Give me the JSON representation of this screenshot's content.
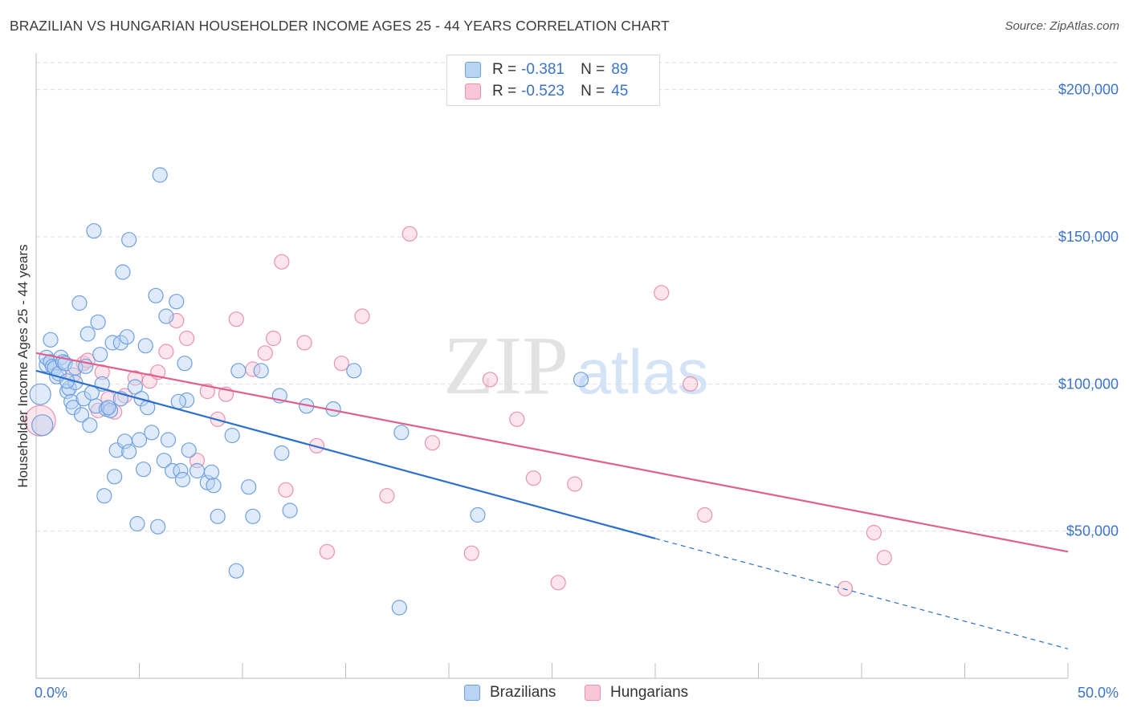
{
  "title": "BRAZILIAN VS HUNGARIAN HOUSEHOLDER INCOME AGES 25 - 44 YEARS CORRELATION CHART",
  "source": "Source: ZipAtlas.com",
  "watermark": {
    "zip": "ZIP",
    "atlas": "atlas"
  },
  "colors": {
    "brazilians": "#6fa0e0",
    "brazilians_fill": "#b9d3f3",
    "brazilians_line": "#2b6fcf",
    "hungarians": "#ea92b0",
    "hungarians_fill": "#f8c6d6",
    "hungarians_line": "#e0608c",
    "axis_text": "#3b74c7",
    "grid": "#dedede"
  },
  "legend_top": [
    {
      "r_label": "R =",
      "r_value": "-0.381",
      "n_label": "N =",
      "n_value": "89"
    },
    {
      "r_label": "R =",
      "r_value": "-0.523",
      "n_label": "N =",
      "n_value": "45"
    }
  ],
  "legend_bottom": [
    "Brazilians",
    "Hungarians"
  ],
  "chart_data": {
    "type": "scatter",
    "title": "BRAZILIAN VS HUNGARIAN HOUSEHOLDER INCOME AGES 25 - 44 YEARS CORRELATION CHART",
    "xlabel": "",
    "ylabel": "Householder Income Ages 25 - 44 years",
    "xlim": [
      0,
      50
    ],
    "ylim": [
      0,
      210000
    ],
    "x_tick_labels": [
      "0.0%",
      "50.0%"
    ],
    "y_ticks": [
      50000,
      100000,
      150000,
      200000
    ],
    "y_tick_labels": [
      "$50,000",
      "$100,000",
      "$150,000",
      "$200,000"
    ],
    "grid": true,
    "legend_position": "top-center",
    "series": [
      {
        "name": "Brazilians",
        "r": -0.381,
        "n": 89,
        "trend": {
          "x0": 0,
          "y0": 104500,
          "x1": 30,
          "y1": 47500,
          "dashed_to_x": 50,
          "dashed_to_y": 10000
        },
        "points": [
          [
            0.2,
            96500
          ],
          [
            0.3,
            86000
          ],
          [
            0.5,
            106500
          ],
          [
            0.5,
            109000
          ],
          [
            0.7,
            107500
          ],
          [
            0.7,
            115000
          ],
          [
            0.8,
            106000
          ],
          [
            0.9,
            105500
          ],
          [
            1.0,
            102500
          ],
          [
            1.1,
            103500
          ],
          [
            1.2,
            109000
          ],
          [
            1.3,
            107500
          ],
          [
            1.4,
            107000
          ],
          [
            1.5,
            97500
          ],
          [
            1.6,
            98500
          ],
          [
            1.7,
            94000
          ],
          [
            1.8,
            92000
          ],
          [
            1.9,
            100500
          ],
          [
            1.9,
            105500
          ],
          [
            2.1,
            127500
          ],
          [
            2.2,
            89500
          ],
          [
            2.3,
            95000
          ],
          [
            2.4,
            106000
          ],
          [
            2.5,
            117000
          ],
          [
            2.6,
            86000
          ],
          [
            2.7,
            97000
          ],
          [
            2.8,
            152000
          ],
          [
            2.9,
            92500
          ],
          [
            3.0,
            121000
          ],
          [
            3.1,
            110000
          ],
          [
            3.2,
            100000
          ],
          [
            3.3,
            62000
          ],
          [
            3.4,
            91500
          ],
          [
            3.6,
            91000
          ],
          [
            3.7,
            114000
          ],
          [
            3.8,
            68500
          ],
          [
            3.9,
            77500
          ],
          [
            4.1,
            95000
          ],
          [
            4.1,
            114000
          ],
          [
            4.2,
            138000
          ],
          [
            4.3,
            80500
          ],
          [
            4.4,
            116000
          ],
          [
            4.5,
            77000
          ],
          [
            4.5,
            149000
          ],
          [
            4.8,
            99000
          ],
          [
            4.9,
            52500
          ],
          [
            5.0,
            81000
          ],
          [
            5.1,
            95000
          ],
          [
            5.2,
            71000
          ],
          [
            5.3,
            113000
          ],
          [
            5.4,
            92000
          ],
          [
            5.6,
            83500
          ],
          [
            5.8,
            130000
          ],
          [
            5.9,
            51500
          ],
          [
            6.0,
            171000
          ],
          [
            6.2,
            74000
          ],
          [
            6.3,
            123000
          ],
          [
            6.4,
            81000
          ],
          [
            6.6,
            70500
          ],
          [
            6.8,
            128000
          ],
          [
            7.0,
            70500
          ],
          [
            7.1,
            67500
          ],
          [
            7.2,
            107000
          ],
          [
            7.3,
            94500
          ],
          [
            7.4,
            77500
          ],
          [
            7.8,
            70500
          ],
          [
            8.3,
            66500
          ],
          [
            8.5,
            70000
          ],
          [
            8.6,
            65500
          ],
          [
            8.8,
            55000
          ],
          [
            9.5,
            82500
          ],
          [
            9.7,
            36500
          ],
          [
            9.8,
            104500
          ],
          [
            10.3,
            65000
          ],
          [
            10.5,
            55000
          ],
          [
            10.9,
            104500
          ],
          [
            11.8,
            96000
          ],
          [
            11.9,
            76500
          ],
          [
            12.3,
            57000
          ],
          [
            13.1,
            92500
          ],
          [
            14.4,
            91500
          ],
          [
            15.4,
            104500
          ],
          [
            17.6,
            24000
          ],
          [
            17.7,
            83500
          ],
          [
            21.4,
            55500
          ],
          [
            26.4,
            101500
          ],
          [
            1.5,
            101000
          ],
          [
            3.5,
            92000
          ],
          [
            6.9,
            94000
          ]
        ]
      },
      {
        "name": "Hungarians",
        "r": -0.523,
        "n": 45,
        "trend": {
          "x0": 0,
          "y0": 110500,
          "x1": 50,
          "y1": 43000
        },
        "points": [
          [
            0.2,
            87500
          ],
          [
            1.8,
            103000
          ],
          [
            2.3,
            107000
          ],
          [
            2.5,
            108000
          ],
          [
            3.0,
            91000
          ],
          [
            3.2,
            104000
          ],
          [
            3.5,
            95000
          ],
          [
            3.8,
            90500
          ],
          [
            4.3,
            96000
          ],
          [
            4.8,
            102000
          ],
          [
            5.5,
            101000
          ],
          [
            5.9,
            104000
          ],
          [
            6.3,
            111000
          ],
          [
            6.8,
            121500
          ],
          [
            7.3,
            115500
          ],
          [
            7.8,
            74000
          ],
          [
            8.3,
            97500
          ],
          [
            8.8,
            88000
          ],
          [
            9.2,
            96500
          ],
          [
            9.7,
            122000
          ],
          [
            10.5,
            105000
          ],
          [
            11.1,
            110500
          ],
          [
            11.5,
            115500
          ],
          [
            11.9,
            141500
          ],
          [
            12.1,
            64000
          ],
          [
            13.0,
            114000
          ],
          [
            13.6,
            79000
          ],
          [
            14.1,
            43000
          ],
          [
            14.8,
            107000
          ],
          [
            15.8,
            123000
          ],
          [
            17.0,
            62000
          ],
          [
            18.1,
            151000
          ],
          [
            19.2,
            80000
          ],
          [
            21.1,
            42500
          ],
          [
            22.0,
            101500
          ],
          [
            23.3,
            88000
          ],
          [
            24.1,
            68000
          ],
          [
            25.3,
            32500
          ],
          [
            26.1,
            66000
          ],
          [
            30.3,
            131000
          ],
          [
            31.7,
            100000
          ],
          [
            32.4,
            55500
          ],
          [
            39.2,
            30500
          ],
          [
            40.6,
            49500
          ],
          [
            41.1,
            41000
          ]
        ]
      }
    ]
  }
}
